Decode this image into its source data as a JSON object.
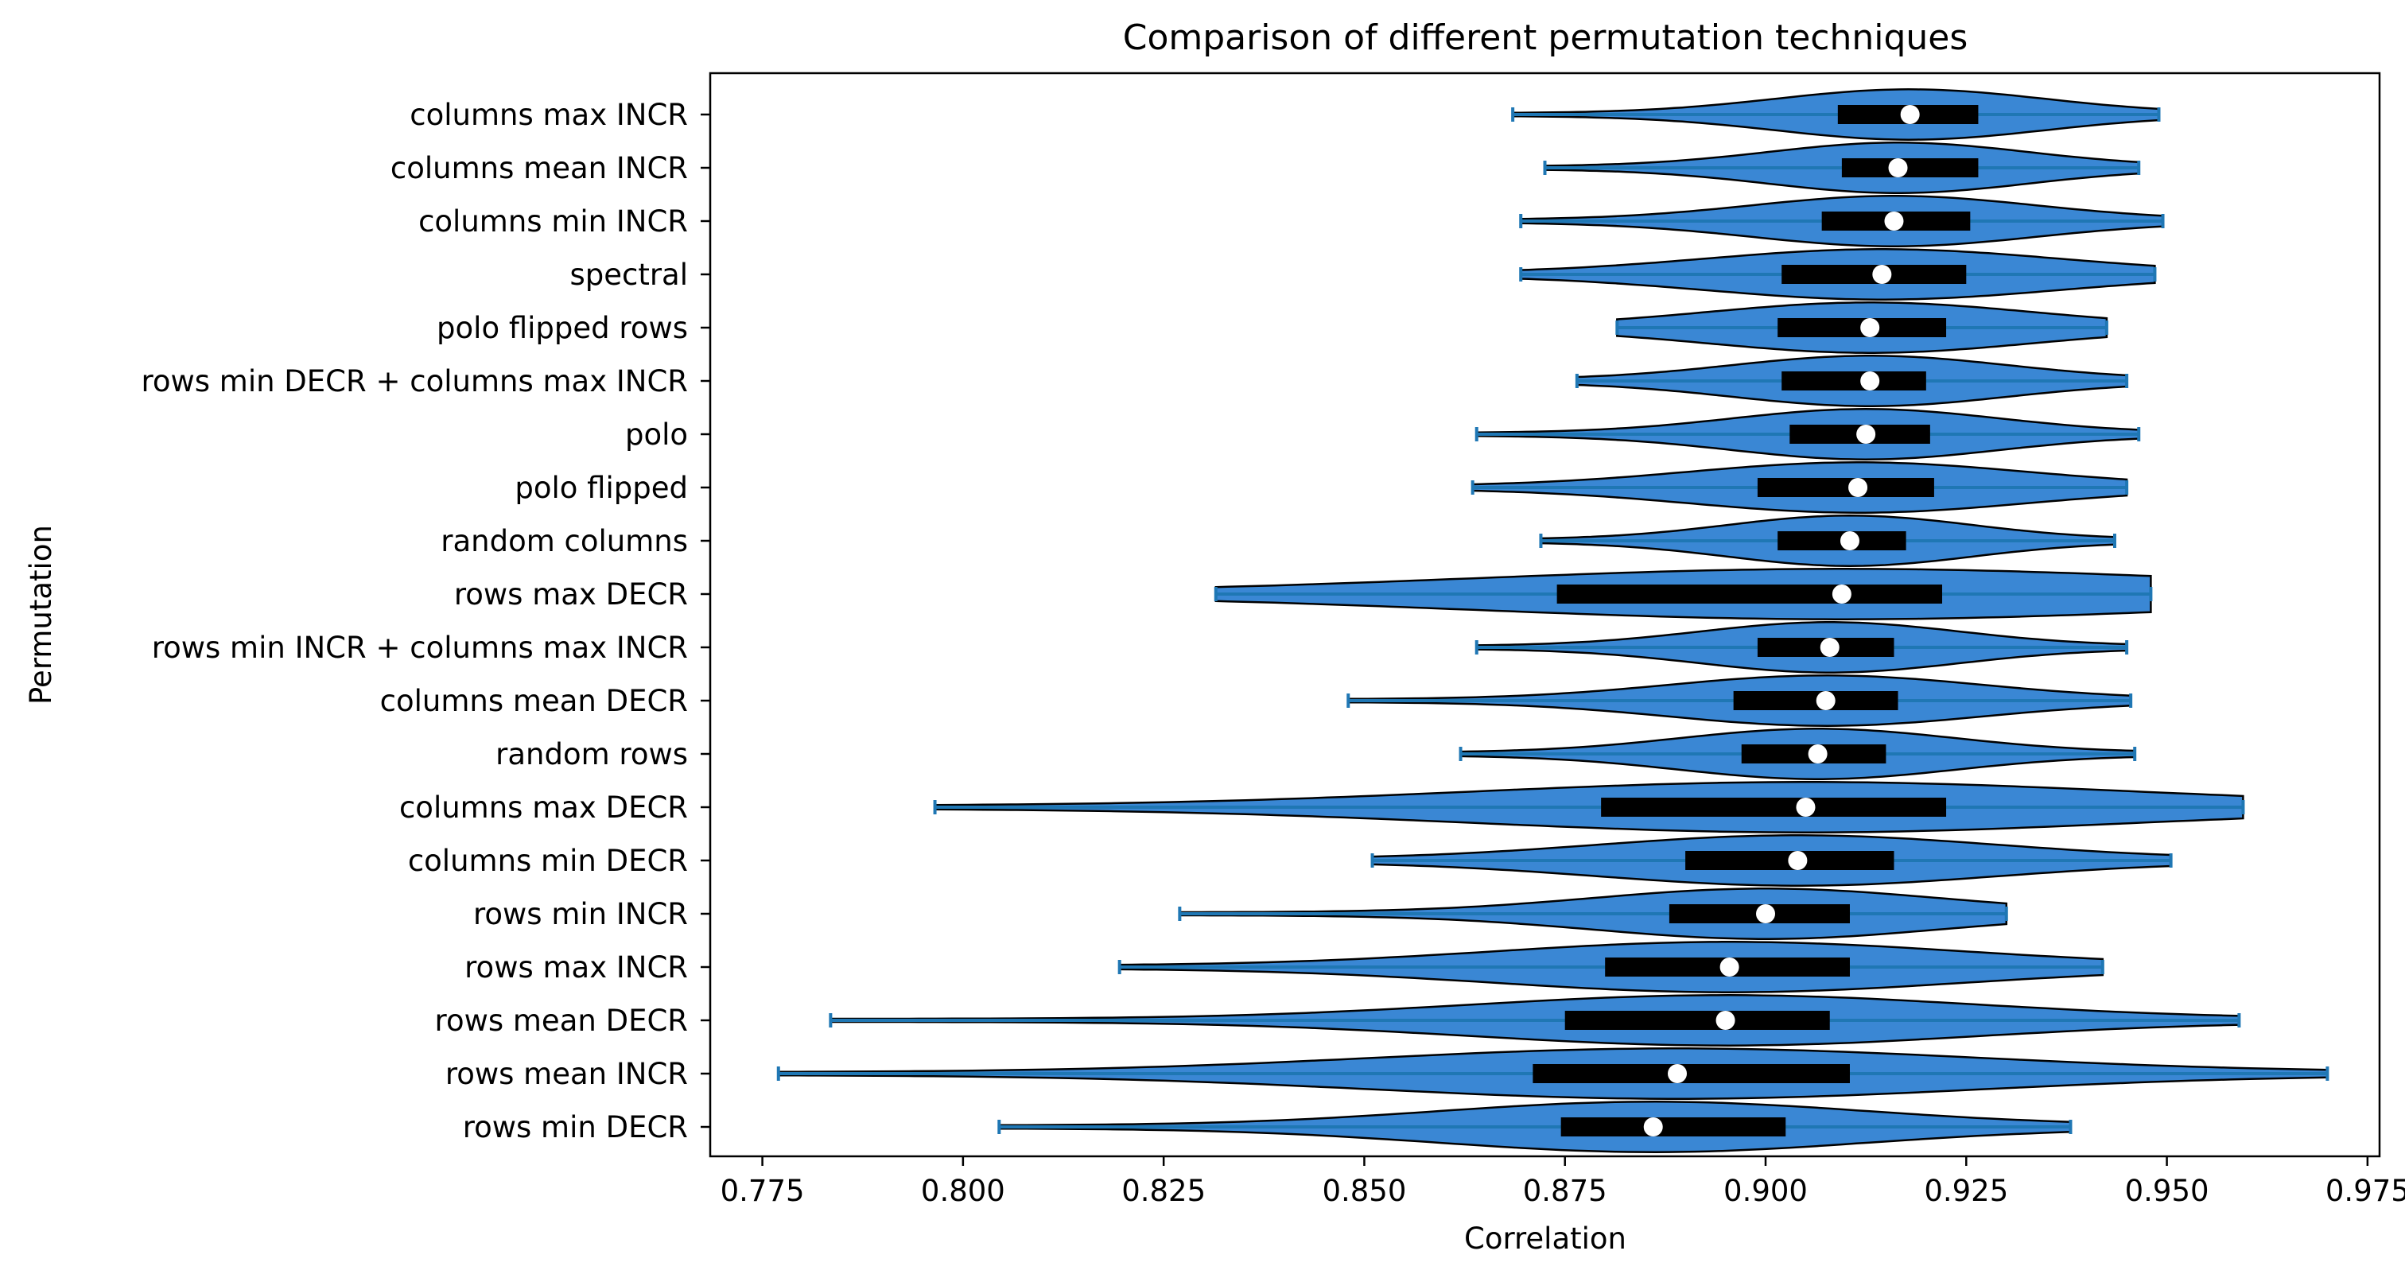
{
  "chart_data": {
    "type": "violin",
    "orientation": "horizontal",
    "title": "Comparison of different permutation techniques",
    "xlabel": "Correlation",
    "ylabel": "Permutation",
    "xlim": [
      0.7685,
      0.9765
    ],
    "xticks": [
      "0.775",
      "0.800",
      "0.825",
      "0.850",
      "0.875",
      "0.900",
      "0.925",
      "0.950",
      "0.975"
    ],
    "xtick_values": [
      0.775,
      0.8,
      0.825,
      0.85,
      0.875,
      0.9,
      0.925,
      0.95,
      0.975
    ],
    "colors": {
      "violin_fill": "#3a87d4",
      "violin_edge": "#000000",
      "whisker": "#1f77b4",
      "box": "#000000",
      "median": "#ffffff"
    },
    "series": [
      {
        "name": "columns max INCR",
        "min": 0.8685,
        "q1": 0.909,
        "median": 0.918,
        "q3": 0.9265,
        "max": 0.949,
        "halfwidth": 0.55
      },
      {
        "name": "columns mean INCR",
        "min": 0.8725,
        "q1": 0.9095,
        "median": 0.9165,
        "q3": 0.9265,
        "max": 0.9465,
        "halfwidth": 0.55
      },
      {
        "name": "columns min INCR",
        "min": 0.8695,
        "q1": 0.907,
        "median": 0.916,
        "q3": 0.9255,
        "max": 0.9495,
        "halfwidth": 0.55
      },
      {
        "name": "spectral",
        "min": 0.8695,
        "q1": 0.902,
        "median": 0.9145,
        "q3": 0.925,
        "max": 0.9485,
        "halfwidth": 0.55
      },
      {
        "name": "polo flipped rows",
        "min": 0.8815,
        "q1": 0.9015,
        "median": 0.913,
        "q3": 0.9225,
        "max": 0.9425,
        "halfwidth": 0.55
      },
      {
        "name": "rows min DECR + columns max INCR",
        "min": 0.8765,
        "q1": 0.902,
        "median": 0.913,
        "q3": 0.92,
        "max": 0.945,
        "halfwidth": 0.55
      },
      {
        "name": "polo",
        "min": 0.864,
        "q1": 0.903,
        "median": 0.9125,
        "q3": 0.9205,
        "max": 0.9465,
        "halfwidth": 0.55
      },
      {
        "name": "polo flipped",
        "min": 0.8635,
        "q1": 0.899,
        "median": 0.9115,
        "q3": 0.921,
        "max": 0.945,
        "halfwidth": 0.55
      },
      {
        "name": "random columns",
        "min": 0.872,
        "q1": 0.9015,
        "median": 0.9105,
        "q3": 0.9175,
        "max": 0.9435,
        "halfwidth": 0.55
      },
      {
        "name": "rows max DECR",
        "min": 0.8315,
        "q1": 0.874,
        "median": 0.9095,
        "q3": 0.922,
        "max": 0.948,
        "halfwidth": 0.55
      },
      {
        "name": "rows min INCR + columns max INCR",
        "min": 0.864,
        "q1": 0.899,
        "median": 0.908,
        "q3": 0.916,
        "max": 0.945,
        "halfwidth": 0.55
      },
      {
        "name": "columns mean DECR",
        "min": 0.848,
        "q1": 0.896,
        "median": 0.9075,
        "q3": 0.9165,
        "max": 0.9455,
        "halfwidth": 0.55
      },
      {
        "name": "random rows",
        "min": 0.862,
        "q1": 0.897,
        "median": 0.9065,
        "q3": 0.915,
        "max": 0.946,
        "halfwidth": 0.55
      },
      {
        "name": "columns max DECR",
        "min": 0.7965,
        "q1": 0.8795,
        "median": 0.905,
        "q3": 0.9225,
        "max": 0.9595,
        "halfwidth": 0.55
      },
      {
        "name": "columns min DECR",
        "min": 0.851,
        "q1": 0.89,
        "median": 0.904,
        "q3": 0.916,
        "max": 0.9505,
        "halfwidth": 0.55
      },
      {
        "name": "rows min INCR",
        "min": 0.827,
        "q1": 0.888,
        "median": 0.9,
        "q3": 0.9105,
        "max": 0.93,
        "halfwidth": 0.55
      },
      {
        "name": "rows max INCR",
        "min": 0.8195,
        "q1": 0.88,
        "median": 0.8955,
        "q3": 0.9105,
        "max": 0.942,
        "halfwidth": 0.55
      },
      {
        "name": "rows mean DECR",
        "min": 0.7835,
        "q1": 0.875,
        "median": 0.895,
        "q3": 0.908,
        "max": 0.959,
        "halfwidth": 0.55
      },
      {
        "name": "rows mean INCR",
        "min": 0.777,
        "q1": 0.871,
        "median": 0.889,
        "q3": 0.9105,
        "max": 0.97,
        "halfwidth": 0.55
      },
      {
        "name": "rows min DECR",
        "min": 0.8045,
        "q1": 0.8745,
        "median": 0.886,
        "q3": 0.9025,
        "max": 0.938,
        "halfwidth": 0.55
      }
    ]
  }
}
